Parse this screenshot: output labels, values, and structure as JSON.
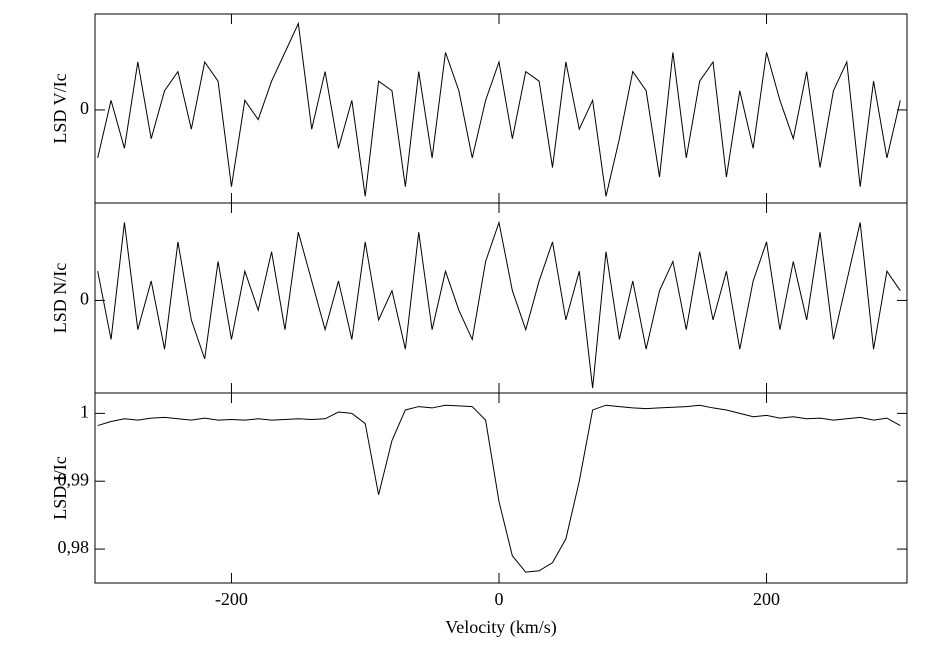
{
  "chart_data": [
    {
      "type": "line",
      "ylabel": "LSD V/Ic",
      "x": [
        -300,
        -290,
        -280,
        -270,
        -260,
        -250,
        -240,
        -230,
        -220,
        -210,
        -200,
        -190,
        -180,
        -170,
        -160,
        -150,
        -140,
        -130,
        -120,
        -110,
        -100,
        -90,
        -80,
        -70,
        -60,
        -50,
        -40,
        -30,
        -20,
        -10,
        0,
        10,
        20,
        30,
        40,
        50,
        60,
        70,
        80,
        90,
        100,
        110,
        120,
        130,
        140,
        150,
        160,
        170,
        180,
        190,
        200,
        210,
        220,
        230,
        240,
        250,
        260,
        270,
        280,
        290,
        300
      ],
      "values": [
        -0.5,
        0.1,
        -0.4,
        0.5,
        -0.3,
        0.2,
        0.4,
        -0.2,
        0.5,
        0.3,
        -0.8,
        0.1,
        -0.1,
        0.3,
        0.6,
        0.9,
        -0.2,
        0.4,
        -0.4,
        0.1,
        -0.9,
        0.3,
        0.2,
        -0.8,
        0.4,
        -0.5,
        0.6,
        0.2,
        -0.5,
        0.1,
        0.5,
        -0.3,
        0.4,
        0.3,
        -0.6,
        0.5,
        -0.2,
        0.1,
        -0.9,
        -0.3,
        0.4,
        0.2,
        -0.7,
        0.6,
        -0.5,
        0.3,
        0.5,
        -0.7,
        0.2,
        -0.4,
        0.6,
        0.1,
        -0.3,
        0.4,
        -0.6,
        0.2,
        0.5,
        -0.8,
        0.3,
        -0.5,
        0.1
      ],
      "color": "#000000",
      "xlim": [
        -302,
        305
      ],
      "ylim": [
        -0.97,
        1
      ],
      "yticks": [
        0
      ]
    },
    {
      "type": "line",
      "ylabel": "LSD N/Ic",
      "x": [
        -300,
        -290,
        -280,
        -270,
        -260,
        -250,
        -240,
        -230,
        -220,
        -210,
        -200,
        -190,
        -180,
        -170,
        -160,
        -150,
        -140,
        -130,
        -120,
        -110,
        -100,
        -90,
        -80,
        -70,
        -60,
        -50,
        -40,
        -30,
        -20,
        -10,
        0,
        10,
        20,
        30,
        40,
        50,
        60,
        70,
        80,
        90,
        100,
        110,
        120,
        130,
        140,
        150,
        160,
        170,
        180,
        190,
        200,
        210,
        220,
        230,
        240,
        250,
        260,
        270,
        280,
        290,
        300
      ],
      "values": [
        0.3,
        -0.4,
        0.8,
        -0.3,
        0.2,
        -0.5,
        0.6,
        -0.2,
        -0.6,
        0.4,
        -0.4,
        0.3,
        -0.1,
        0.5,
        -0.3,
        0.7,
        0.2,
        -0.3,
        0.2,
        -0.4,
        0.6,
        -0.2,
        0.1,
        -0.5,
        0.7,
        -0.3,
        0.3,
        -0.1,
        -0.4,
        0.4,
        0.8,
        0.1,
        -0.3,
        0.2,
        0.6,
        -0.2,
        0.3,
        -0.9,
        0.5,
        -0.4,
        0.2,
        -0.5,
        0.1,
        0.4,
        -0.3,
        0.5,
        -0.2,
        0.3,
        -0.5,
        0.2,
        0.6,
        -0.3,
        0.4,
        -0.2,
        0.7,
        -0.4,
        0.2,
        0.8,
        -0.5,
        0.3,
        0.1
      ],
      "color": "#000000",
      "xlim": [
        -302,
        305
      ],
      "ylim": [
        -0.95,
        1
      ],
      "yticks": [
        0
      ]
    },
    {
      "type": "line",
      "ylabel": "LSD I/Ic",
      "xlabel": "Velocity (km/s)",
      "x": [
        -300,
        -290,
        -280,
        -270,
        -260,
        -250,
        -240,
        -230,
        -220,
        -210,
        -200,
        -190,
        -180,
        -170,
        -160,
        -150,
        -140,
        -130,
        -120,
        -110,
        -100,
        -90,
        -80,
        -70,
        -60,
        -50,
        -40,
        -30,
        -20,
        -10,
        0,
        10,
        20,
        30,
        40,
        50,
        60,
        70,
        80,
        90,
        100,
        110,
        120,
        130,
        140,
        150,
        160,
        170,
        180,
        190,
        200,
        210,
        220,
        230,
        240,
        250,
        260,
        270,
        280,
        290,
        300
      ],
      "values": [
        0.9982,
        0.9988,
        0.9992,
        0.999,
        0.9993,
        0.9994,
        0.9992,
        0.999,
        0.9993,
        0.999,
        0.9991,
        0.999,
        0.9992,
        0.999,
        0.9991,
        0.9992,
        0.9991,
        0.9992,
        1.0002,
        1.0,
        0.9985,
        0.988,
        0.996,
        1.0005,
        1.001,
        1.0008,
        1.0012,
        1.0011,
        1.001,
        0.999,
        0.987,
        0.979,
        0.9766,
        0.9768,
        0.978,
        0.9815,
        0.99,
        1.0005,
        1.0012,
        1.001,
        1.0008,
        1.0007,
        1.0008,
        1.0009,
        1.001,
        1.0012,
        1.0008,
        1.0005,
        1.0,
        0.9995,
        0.9997,
        0.9993,
        0.9995,
        0.9992,
        0.9993,
        0.999,
        0.9992,
        0.9994,
        0.999,
        0.9993,
        0.9982
      ],
      "color": "#000000",
      "xlim": [
        -302,
        305
      ],
      "ylim": [
        0.975,
        1.003
      ],
      "yticks": [
        {
          "value": 0.98,
          "label": "0,98"
        },
        {
          "value": 0.99,
          "label": "0,99"
        },
        1
      ],
      "xticks": [
        -200,
        0,
        200
      ]
    }
  ]
}
